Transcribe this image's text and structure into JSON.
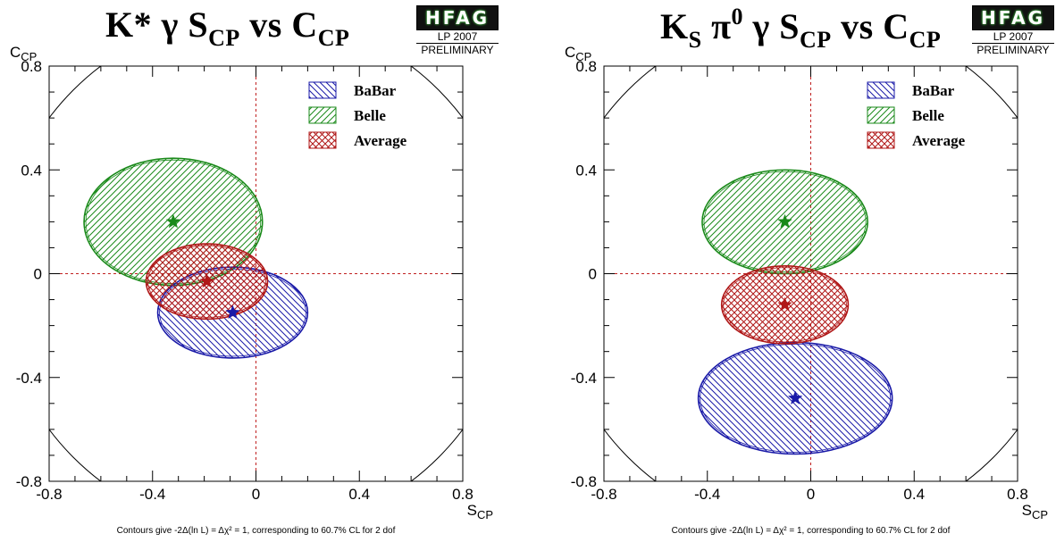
{
  "chart_data": [
    {
      "type": "scatter",
      "title_main": "K* γ S",
      "title_sub": "CP",
      "title_mid": " vs C",
      "title_sub2": "CP",
      "xlabel": "S",
      "xlabel_sub": "CP",
      "ylabel": "C",
      "ylabel_sub": "CP",
      "xlim": [
        -0.8,
        0.8
      ],
      "ylim": [
        -0.8,
        0.8
      ],
      "xticks": [
        "-0.8",
        "-0.4",
        "0",
        "0.4",
        "0.8"
      ],
      "yticks": [
        "0.8",
        "0.4",
        "0",
        "-0.4",
        "-0.8"
      ],
      "legend_position": "top-right",
      "series": [
        {
          "name": "BaBar",
          "color": "#1a1aa8",
          "hatch": "down",
          "center": [
            -0.09,
            -0.15
          ],
          "semi_axes": [
            0.29,
            0.175
          ]
        },
        {
          "name": "Belle",
          "color": "#1a8a1a",
          "hatch": "up",
          "center": [
            -0.32,
            0.2
          ],
          "semi_axes": [
            0.345,
            0.245
          ]
        },
        {
          "name": "Average",
          "color": "#b01818",
          "hatch": "cross",
          "center": [
            -0.19,
            -0.03
          ],
          "semi_axes": [
            0.235,
            0.145
          ]
        }
      ],
      "footnote": "Contours give -2Δ(ln L) = Δχ² = 1, corresponding to 60.7% CL for 2 dof"
    },
    {
      "type": "scatter",
      "title_main": "K",
      "title_sub": "S",
      "title_mid": " π",
      "title_sup": "0",
      "title_mid2": " γ S",
      "title_sub2": "CP",
      "title_mid3": " vs C",
      "title_sub3": "CP",
      "xlabel": "S",
      "xlabel_sub": "CP",
      "ylabel": "C",
      "ylabel_sub": "CP",
      "xlim": [
        -0.8,
        0.8
      ],
      "ylim": [
        -0.8,
        0.8
      ],
      "xticks": [
        "-0.8",
        "-0.4",
        "0",
        "0.4",
        "0.8"
      ],
      "yticks": [
        "0.8",
        "0.4",
        "0",
        "-0.4",
        "-0.8"
      ],
      "legend_position": "top-right",
      "series": [
        {
          "name": "BaBar",
          "color": "#1a1aa8",
          "hatch": "down",
          "center": [
            -0.06,
            -0.48
          ],
          "semi_axes": [
            0.375,
            0.215
          ]
        },
        {
          "name": "Belle",
          "color": "#1a8a1a",
          "hatch": "up",
          "center": [
            -0.1,
            0.2
          ],
          "semi_axes": [
            0.32,
            0.2
          ]
        },
        {
          "name": "Average",
          "color": "#b01818",
          "hatch": "cross",
          "center": [
            -0.1,
            -0.12
          ],
          "semi_axes": [
            0.245,
            0.15
          ]
        }
      ],
      "footnote": "Contours give -2Δ(ln L) = Δχ² = 1, corresponding to 60.7% CL for 2 dof"
    }
  ],
  "logo": {
    "name": "HFAG",
    "conference": "LP 2007",
    "status": "PRELIMINARY"
  }
}
